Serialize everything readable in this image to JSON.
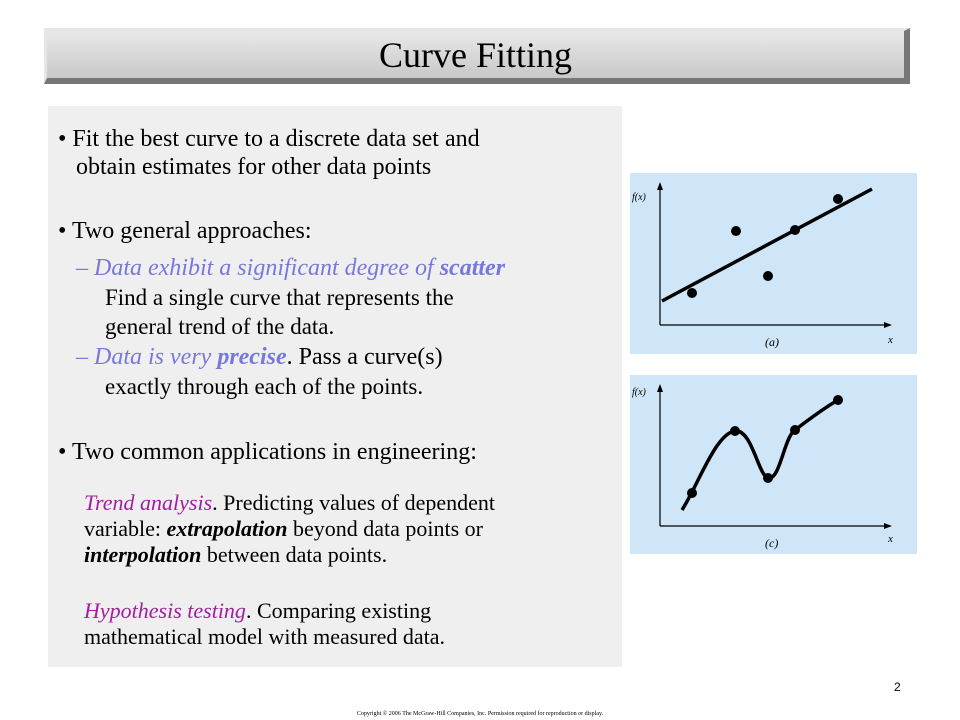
{
  "slide": {
    "title": "Curve Fitting",
    "bullet1_line1": "• Fit the best curve to a discrete data set and",
    "bullet1_line2": "obtain estimates for other data points",
    "bullet2": "• Two general approaches:",
    "sub1_dash": "– ",
    "sub1_italic": "Data exhibit a significant degree of ",
    "sub1_bold": "scatter",
    "sub1_line2": "Find a single curve that represents the",
    "sub1_line3": "general trend of the data.",
    "sub2_dash": "– ",
    "sub2_italic": "Data is very ",
    "sub2_bold": "precise",
    "sub2_rest": ". Pass a curve(s)",
    "sub2_line2": "exactly through each of the points.",
    "bullet3": "• Two common applications in engineering:",
    "trend_label": "Trend analysis",
    "trend_rest": ". Predicting values of dependent",
    "trend_line2_pre": "variable: ",
    "trend_line2_bold": "extrapolation",
    "trend_line2_post": " beyond data points or",
    "trend_line3_bold": "interpolation",
    "trend_line3_post": " between data points.",
    "hyp_label": "Hypothesis testing",
    "hyp_rest": ". Comparing existing",
    "hyp_line2": "mathematical model with measured data."
  },
  "figures": {
    "a": {
      "ylabel": "f(x)",
      "xlabel": "x",
      "caption": "(a)"
    },
    "c": {
      "ylabel": "f(x)",
      "xlabel": "x",
      "caption": "(c)"
    }
  },
  "footer": {
    "copyright": "Copyright © 2006 The McGraw-Hill Companies, Inc.  Permission required for reproduction or display.",
    "page_number": "2"
  },
  "colors": {
    "panel": "#efefef",
    "figure_bg": "#cfe6f8",
    "accent_blue": "#7777dd",
    "accent_purple": "#a020a0"
  }
}
